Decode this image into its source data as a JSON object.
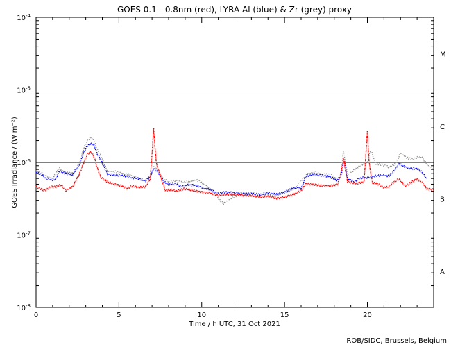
{
  "chart_data": {
    "type": "scatter",
    "title": "GOES 0.1—0.8nm (red), LYRA Al (blue) & Zr (grey) proxy",
    "xlabel": "Time / h UTC, 31 Oct 2021",
    "ylabel": "GOES Irradiance / (W m⁻²)",
    "credit": "ROB/SIDC, Brussels, Belgium",
    "xlim": [
      0,
      24
    ],
    "ylim": [
      1e-08,
      0.0001
    ],
    "yscale": "log",
    "x_ticks": [
      {
        "value": 0,
        "label": "0"
      },
      {
        "value": 5,
        "label": "5"
      },
      {
        "value": 10,
        "label": "10"
      },
      {
        "value": 15,
        "label": "15"
      },
      {
        "value": 20,
        "label": "20"
      }
    ],
    "y_ticks": [
      {
        "exp": -8,
        "mant": "10",
        "sup": "-8"
      },
      {
        "exp": -7,
        "mant": "10",
        "sup": "-7"
      },
      {
        "exp": -6,
        "mant": "10",
        "sup": "-6"
      },
      {
        "exp": -5,
        "mant": "10",
        "sup": "-5"
      },
      {
        "exp": -4,
        "mant": "10",
        "sup": "-4"
      }
    ],
    "threshold_lines": [
      1e-07,
      1e-06,
      1e-05
    ],
    "flare_classes": [
      {
        "label": "A",
        "value": 3.16e-08
      },
      {
        "label": "B",
        "value": 3.16e-07
      },
      {
        "label": "C",
        "value": 3.16e-06
      },
      {
        "label": "M",
        "value": 3.16e-05
      }
    ],
    "colors": {
      "red": "#ff0000",
      "blue": "#0000ff",
      "grey": "#8c8c8c"
    },
    "series": [
      {
        "name": "GOES 0.1—0.8nm",
        "color": "#ff0000",
        "x": [
          0,
          0.3,
          0.5,
          0.9,
          1.2,
          1.5,
          1.8,
          2.2,
          2.6,
          2.9,
          3.1,
          3.3,
          3.5,
          3.7,
          3.9,
          4.3,
          4.7,
          5.2,
          5.5,
          5.8,
          6.2,
          6.6,
          6.9,
          7.1,
          7.25,
          7.5,
          7.8,
          8.1,
          8.5,
          8.9,
          9.3,
          9.7,
          10.0,
          10.5,
          11.0,
          11.5,
          12.0,
          12.5,
          13.0,
          13.5,
          14.0,
          14.5,
          15.0,
          15.5,
          16.0,
          16.3,
          16.7,
          17.2,
          17.7,
          18.2,
          18.4,
          18.55,
          18.8,
          19.3,
          19.8,
          20.0,
          20.1,
          20.3,
          20.6,
          21.0,
          21.3,
          21.6,
          21.9,
          22.3,
          22.7,
          23.0,
          23.3,
          23.6,
          24.0
        ],
        "y": [
          4.6e-07,
          4.3e-07,
          4.1e-07,
          4.6e-07,
          4.6e-07,
          4.9e-07,
          4.1e-07,
          4.6e-07,
          6.8e-07,
          1.02e-06,
          1.3e-06,
          1.4e-06,
          1.2e-06,
          8.3e-07,
          6.3e-07,
          5.4e-07,
          5e-07,
          4.7e-07,
          4.4e-07,
          4.7e-07,
          4.5e-07,
          4.6e-07,
          6e-07,
          2.9e-06,
          1e-06,
          6.5e-07,
          4.1e-07,
          4.2e-07,
          4e-07,
          4.3e-07,
          4.2e-07,
          4e-07,
          3.9e-07,
          3.8e-07,
          3.5e-07,
          3.6e-07,
          3.6e-07,
          3.5e-07,
          3.5e-07,
          3.3e-07,
          3.4e-07,
          3.2e-07,
          3.3e-07,
          3.6e-07,
          4.1e-07,
          5.1e-07,
          5e-07,
          4.8e-07,
          4.7e-07,
          5e-07,
          7e-07,
          1.15e-06,
          5.4e-07,
          5.1e-07,
          5.4e-07,
          2.7e-06,
          1e-06,
          5.2e-07,
          5.1e-07,
          4.5e-07,
          4.6e-07,
          5.4e-07,
          5.9e-07,
          4.7e-07,
          5.4e-07,
          5.9e-07,
          5.3e-07,
          4.3e-07,
          4.2e-07
        ]
      },
      {
        "name": "LYRA Al",
        "color": "#0000ff",
        "x": [
          0,
          0.2,
          0.4,
          0.6,
          0.9,
          1.2,
          1.4,
          1.8,
          2.2,
          2.6,
          2.9,
          3.1,
          3.3,
          3.5,
          3.7,
          3.9,
          4.3,
          4.7,
          5.2,
          5.5,
          5.8,
          6.2,
          6.6,
          6.9,
          7.1,
          7.4,
          7.7,
          8.0,
          8.4,
          8.8,
          9.2,
          9.7,
          10.0,
          10.5,
          11.0,
          11.4,
          12.0,
          12.5,
          13.0,
          13.5,
          14.0,
          14.5,
          15.0,
          15.5,
          16.0,
          16.3,
          16.7,
          17.2,
          17.7,
          18.2,
          18.4,
          18.6,
          18.8,
          19.2,
          19.6,
          20.0,
          20.3,
          20.6,
          21.0,
          21.3,
          21.6,
          21.9,
          22.3,
          22.6,
          23.0,
          23.3,
          23.6
        ],
        "y": [
          7.3e-07,
          7e-07,
          6.6e-07,
          6e-07,
          5.7e-07,
          5.9e-07,
          7.6e-07,
          7e-07,
          6.8e-07,
          9e-07,
          1.4e-06,
          1.7e-06,
          1.8e-06,
          1.75e-06,
          1.3e-06,
          1.1e-06,
          6.9e-07,
          6.7e-07,
          6.6e-07,
          6.4e-07,
          6.1e-07,
          6e-07,
          5.5e-07,
          6.4e-07,
          8.3e-07,
          7.1e-07,
          5.5e-07,
          4.9e-07,
          5.1e-07,
          4.6e-07,
          4.9e-07,
          4.8e-07,
          4.5e-07,
          4.2e-07,
          3.7e-07,
          3.9e-07,
          3.8e-07,
          3.7e-07,
          3.7e-07,
          3.6e-07,
          3.8e-07,
          3.6e-07,
          3.9e-07,
          4.4e-07,
          4.4e-07,
          6.5e-07,
          6.8e-07,
          6.6e-07,
          6.4e-07,
          5.6e-07,
          6.5e-07,
          1.05e-06,
          6e-07,
          5.4e-07,
          6.1e-07,
          6.2e-07,
          6.3e-07,
          6.6e-07,
          6.6e-07,
          6.5e-07,
          7.6e-07,
          9.6e-07,
          8.6e-07,
          8.3e-07,
          8.2e-07,
          7.3e-07,
          5.9e-07
        ]
      },
      {
        "name": "LYRA Zr",
        "color": "#8c8c8c",
        "x": [
          0,
          0.2,
          0.4,
          0.7,
          1.0,
          1.4,
          1.8,
          2.2,
          2.6,
          2.9,
          3.1,
          3.3,
          3.5,
          3.7,
          3.9,
          4.3,
          4.7,
          5.2,
          5.6,
          6.0,
          6.5,
          6.9,
          7.1,
          7.4,
          7.7,
          8.0,
          8.4,
          8.8,
          9.2,
          9.7,
          10.2,
          10.7,
          11.0,
          11.3,
          11.7,
          12.2,
          12.7,
          13.2,
          13.7,
          14.2,
          14.7,
          15.2,
          15.7,
          16.1,
          16.4,
          16.8,
          17.3,
          17.8,
          18.2,
          18.4,
          18.55,
          18.8,
          19.1,
          19.4,
          19.7,
          20.0,
          20.2,
          20.5,
          20.9,
          21.3,
          21.7,
          22.0,
          22.4,
          22.8,
          23.0,
          23.3,
          23.6,
          24.0
        ],
        "y": [
          7.6e-07,
          7.3e-07,
          7e-07,
          6.3e-07,
          6e-07,
          8.3e-07,
          7.2e-07,
          7e-07,
          9.5e-07,
          1.6e-06,
          2e-06,
          2.2e-06,
          2e-06,
          1.5e-06,
          1.25e-06,
          7.6e-07,
          7.5e-07,
          7.1e-07,
          6.8e-07,
          6.3e-07,
          5.6e-07,
          6.4e-07,
          8.6e-07,
          7.6e-07,
          6e-07,
          5.3e-07,
          5.6e-07,
          5.3e-07,
          5.4e-07,
          5.7e-07,
          4.9e-07,
          4e-07,
          3.2e-07,
          2.7e-07,
          3.1e-07,
          3.6e-07,
          3.8e-07,
          3.4e-07,
          3.6e-07,
          3.4e-07,
          3.6e-07,
          4e-07,
          4.6e-07,
          6e-07,
          7e-07,
          7.3e-07,
          6.9e-07,
          6.7e-07,
          5.9e-07,
          7.1e-07,
          1.45e-06,
          6.6e-07,
          7.6e-07,
          8.6e-07,
          9.3e-07,
          1e-06,
          1.5e-06,
          9.6e-07,
          9.3e-07,
          8.6e-07,
          9.5e-07,
          1.35e-06,
          1.15e-06,
          1.1e-06,
          1.18e-06,
          1.18e-06,
          9.3e-07,
          8e-07
        ]
      }
    ]
  }
}
